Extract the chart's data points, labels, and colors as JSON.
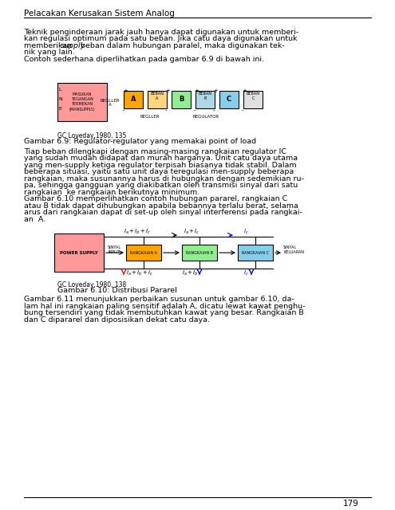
{
  "page_bg": "#f0f0f0",
  "content_bg": "#ffffff",
  "title": "Pelacakan Kerusakan Sistem Analog",
  "page_number": "179",
  "para1": "Teknik penginderaan jarak jauh hanya dapat digunakan untuk memberi-\nkan regulasi optimum pada satu beban. Jika catu daya digunakan untuk\nmemberikan supply beban dalam hubungan paralel, maka digunakan tek-\nnik yang lain.\nContoh sederhana diperlihatkan pada gambar 6.9 di bawah ini.",
  "fig1_caption1": "GC Loveday,1980, 135",
  "fig1_caption2": "Gambar 6.9: Regulator-regulator yang memakai point of load",
  "para2": "Tiap beban dilengkapi dengan masing-masing rangkaian regulator IC\nyang sudah mudah didapat dan murah harganya. Unit catu daya utama\nyang men-supply ketiga regulator terpisah biasanya tidak stabil. Dalam\nbeberapa situasi, yaitu satu unit daya teregulasi men-supply beberapa\nrangkaian, maka susunannya harus di hubungkan dengan sedemikian ru-\npa, sehingga gangguan yang diakibatkan oleh transmisi sinyal dari satu\nrangkaian  ke rangkaian berikutnya minimum.\nGambar 6.10 memperlihatkan contoh hubungan pararel, rangkaian C\natau B tidak dapat dihubungkan apabila bebannya terlalu berat, selama\narus dari rangkaian dapat di set-up oleh sinyal interferensi pada rangkai-\nan  A.",
  "fig2_caption1": "GC Loveday,1980, 138",
  "fig2_caption2": "Gambar 6.10: Distribusi Pararel",
  "para3": "Gambar 6.11 menunjukkan perbaikan susunan untuk gambar 6.10, da-\nlam hal ini rangkaian paling sensitif adalah A, dicatu lewat kawat penghu-\nbung tersendiri yang tidak membutuhkan kawat yang besar. Rangkaian B\ndan C dipararel dan diposisikan dekat catu daya."
}
